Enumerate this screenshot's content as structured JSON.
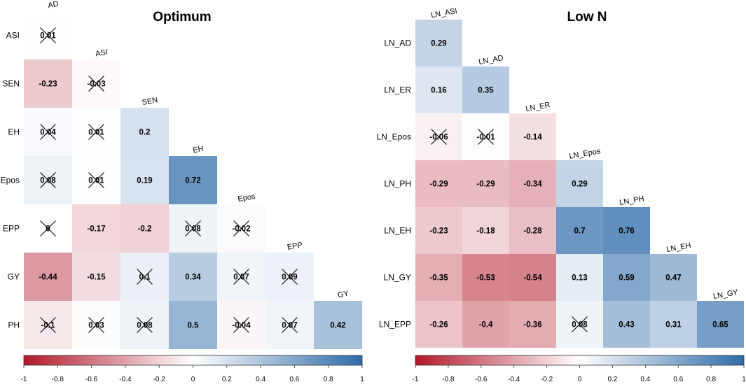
{
  "chart_data": [
    {
      "type": "heatmap",
      "subtype": "lower-triangular correlation matrix",
      "title": "Optimum",
      "row_labels": [
        "ASI",
        "SEN",
        "EH",
        "Epos",
        "EPP",
        "GY",
        "PH"
      ],
      "col_labels": [
        "AD",
        "ASI",
        "SEN",
        "EH",
        "Epos",
        "EPP",
        "GY"
      ],
      "values": [
        [
          0.01
        ],
        [
          -0.23,
          -0.03
        ],
        [
          0.04,
          0.01,
          0.2
        ],
        [
          0.08,
          0.01,
          0.19,
          0.72
        ],
        [
          0,
          -0.17,
          -0.2,
          0.08,
          -0.02
        ],
        [
          -0.44,
          -0.15,
          0.1,
          0.34,
          0.07,
          0.09
        ],
        [
          -0.1,
          0.03,
          0.08,
          0.5,
          -0.04,
          0.07,
          0.42
        ]
      ],
      "value_labels": [
        [
          "0.01"
        ],
        [
          "-0.23",
          "-0.03"
        ],
        [
          "0.04",
          "0.01",
          "0.2"
        ],
        [
          "0.08",
          "0.01",
          "0.19",
          "0.72"
        ],
        [
          "0",
          "-0.17",
          "-0.2",
          "0.08",
          "-0.02"
        ],
        [
          "-0.44",
          "-0.15",
          "0.1",
          "0.34",
          "0.07",
          "0.09"
        ],
        [
          "-0.1",
          "0.03",
          "0.08",
          "0.5",
          "-0.04",
          "0.07",
          "0.42"
        ]
      ],
      "non_significant": [
        [
          true
        ],
        [
          false,
          true
        ],
        [
          true,
          true,
          false
        ],
        [
          true,
          true,
          false,
          false
        ],
        [
          true,
          false,
          false,
          true,
          true
        ],
        [
          false,
          false,
          true,
          false,
          true,
          true
        ],
        [
          true,
          true,
          true,
          false,
          true,
          true,
          false
        ]
      ],
      "colorbar": {
        "min": -1,
        "max": 1,
        "ticks": [
          "-1",
          "-0.8",
          "-0.6",
          "-0.4",
          "-0.2",
          "0",
          "0.2",
          "0.4",
          "0.6",
          "0.8",
          "1"
        ]
      },
      "colors": {
        "negative": "#b2182b",
        "neutral": "#ffffff",
        "positive": "#2e6ba8"
      }
    },
    {
      "type": "heatmap",
      "subtype": "lower-triangular correlation matrix",
      "title": "Low N",
      "row_labels": [
        "LN_AD",
        "LN_ER",
        "LN_Epos",
        "LN_PH",
        "LN_EH",
        "LN_GY",
        "LN_EPP"
      ],
      "col_labels": [
        "LN_ASI",
        "LN_AD",
        "LN_ER",
        "LN_Epos",
        "LN_PH",
        "LN_EH",
        "LN_GY"
      ],
      "values": [
        [
          0.29
        ],
        [
          0.16,
          0.35
        ],
        [
          -0.06,
          -0.01,
          -0.14
        ],
        [
          -0.29,
          -0.29,
          -0.34,
          0.29
        ],
        [
          -0.23,
          -0.18,
          -0.28,
          0.7,
          0.76
        ],
        [
          -0.35,
          -0.53,
          -0.54,
          0.13,
          0.59,
          0.47
        ],
        [
          -0.26,
          -0.4,
          -0.36,
          0.08,
          0.43,
          0.31,
          0.65
        ]
      ],
      "value_labels": [
        [
          "0.29"
        ],
        [
          "0.16",
          "0.35"
        ],
        [
          "-0.06",
          "-0.01",
          "-0.14"
        ],
        [
          "-0.29",
          "-0.29",
          "-0.34",
          "0.29"
        ],
        [
          "-0.23",
          "-0.18",
          "-0.28",
          "0.7",
          "0.76"
        ],
        [
          "-0.35",
          "-0.53",
          "-0.54",
          "0.13",
          "0.59",
          "0.47"
        ],
        [
          "-0.26",
          "-0.4",
          "-0.36",
          "0.08",
          "0.43",
          "0.31",
          "0.65"
        ]
      ],
      "non_significant": [
        [
          false
        ],
        [
          false,
          false
        ],
        [
          true,
          true,
          false
        ],
        [
          false,
          false,
          false,
          false
        ],
        [
          false,
          false,
          false,
          false,
          false
        ],
        [
          false,
          false,
          false,
          false,
          false,
          false
        ],
        [
          false,
          false,
          false,
          true,
          false,
          false,
          false
        ]
      ],
      "colorbar": {
        "min": -1,
        "max": 1,
        "ticks": [
          "-1",
          "-0.8",
          "-0.6",
          "-0.4",
          "-0.2",
          "0",
          "0.2",
          "0.4",
          "0.6",
          "0.8",
          "1"
        ]
      },
      "colors": {
        "negative": "#b2182b",
        "neutral": "#ffffff",
        "positive": "#2e6ba8"
      }
    }
  ]
}
